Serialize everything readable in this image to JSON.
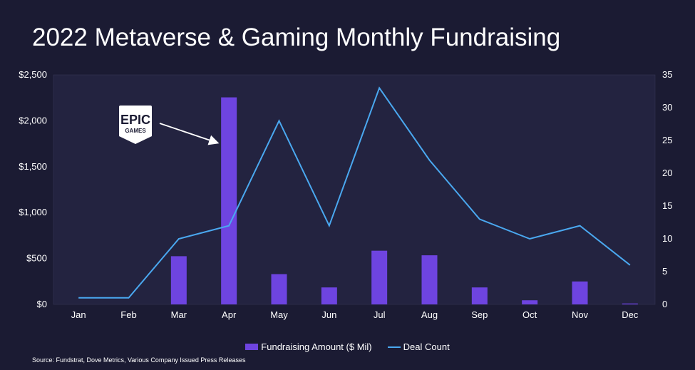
{
  "title": "2022 Metaverse & Gaming Monthly Fundraising",
  "source": "Source: Fundstrat, Dove Metrics, Various Company Issued Press Releases",
  "logo": {
    "text_top": "EPIC",
    "text_bottom": "GAMES"
  },
  "colors": {
    "background": "#1b1b33",
    "plot_area": "#232340",
    "bar": "#6e44e0",
    "line": "#4aa8f0",
    "arrow": "#ffffff"
  },
  "chart_data": {
    "type": "bar",
    "categories": [
      "Jan",
      "Feb",
      "Mar",
      "Apr",
      "May",
      "Jun",
      "Jul",
      "Aug",
      "Sep",
      "Oct",
      "Nov",
      "Dec"
    ],
    "series": [
      {
        "name": "Fundraising Amount ($ Mil)",
        "type": "bar",
        "axis": "left",
        "values": [
          0,
          0,
          525,
          2255,
          330,
          185,
          585,
          535,
          185,
          45,
          250,
          10
        ]
      },
      {
        "name": "Deal Count",
        "type": "line",
        "axis": "right",
        "values": [
          1,
          1,
          10,
          12,
          28,
          12,
          33,
          22,
          13,
          10,
          12,
          6
        ]
      }
    ],
    "y_left": {
      "ylim": [
        0,
        2500
      ],
      "ticks": [
        "$0",
        "$500",
        "$1,000",
        "$1,500",
        "$2,000",
        "$2,500"
      ],
      "tick_values": [
        0,
        500,
        1000,
        1500,
        2000,
        2500
      ]
    },
    "y_right": {
      "ylim": [
        0,
        35
      ],
      "ticks": [
        "0",
        "5",
        "10",
        "15",
        "20",
        "25",
        "30",
        "35"
      ],
      "tick_values": [
        0,
        5,
        10,
        15,
        20,
        25,
        30,
        35
      ]
    },
    "legend_position": "bottom-center",
    "grid": false
  }
}
